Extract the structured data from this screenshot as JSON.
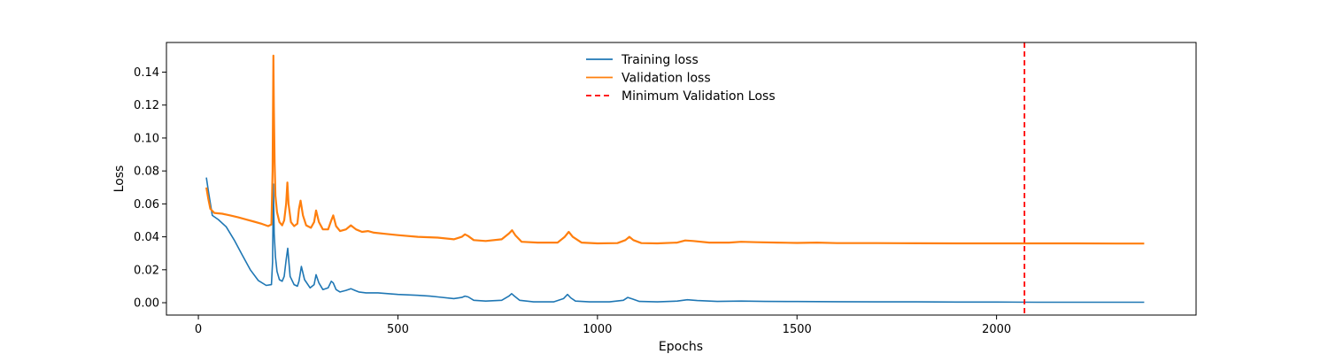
{
  "chart_data": {
    "type": "line",
    "xlabel": "Epochs",
    "ylabel": "Loss",
    "xlim": [
      -80,
      2500
    ],
    "ylim": [
      -0.0075,
      0.158
    ],
    "xticks": [
      0,
      500,
      1000,
      1500,
      2000
    ],
    "yticks": [
      0.0,
      0.02,
      0.04,
      0.06,
      0.08,
      0.1,
      0.12,
      0.14
    ],
    "ytick_labels": [
      "0.00",
      "0.02",
      "0.04",
      "0.06",
      "0.08",
      "0.10",
      "0.12",
      "0.14"
    ],
    "legend_position": "top-center",
    "grid": false,
    "series": [
      {
        "name": "Training loss",
        "color": "#1f77b4",
        "style": "solid",
        "x": [
          20,
          25,
          35,
          50,
          70,
          90,
          110,
          130,
          150,
          170,
          183,
          186,
          188,
          190,
          193,
          197,
          203,
          210,
          215,
          220,
          224,
          230,
          240,
          248,
          252,
          258,
          266,
          280,
          290,
          295,
          302,
          312,
          325,
          333,
          338,
          345,
          355,
          370,
          382,
          392,
          402,
          420,
          450,
          500,
          550,
          580,
          600,
          640,
          660,
          668,
          676,
          690,
          720,
          760,
          778,
          785,
          792,
          805,
          840,
          890,
          915,
          925,
          933,
          945,
          980,
          1030,
          1065,
          1076,
          1088,
          1105,
          1150,
          1200,
          1225,
          1250,
          1300,
          1360,
          1420,
          1500,
          1600,
          1700,
          1800,
          1900,
          2000,
          2100,
          2200,
          2300,
          2370
        ],
        "y": [
          0.076,
          0.068,
          0.053,
          0.0505,
          0.046,
          0.038,
          0.029,
          0.02,
          0.0135,
          0.0105,
          0.011,
          0.025,
          0.072,
          0.042,
          0.028,
          0.019,
          0.014,
          0.013,
          0.016,
          0.026,
          0.033,
          0.016,
          0.011,
          0.01,
          0.013,
          0.022,
          0.014,
          0.009,
          0.011,
          0.017,
          0.012,
          0.008,
          0.009,
          0.013,
          0.012,
          0.008,
          0.0065,
          0.0075,
          0.0085,
          0.0075,
          0.0065,
          0.006,
          0.006,
          0.005,
          0.0045,
          0.004,
          0.0035,
          0.0025,
          0.0032,
          0.004,
          0.0035,
          0.0015,
          0.001,
          0.0015,
          0.004,
          0.0055,
          0.004,
          0.0015,
          0.0005,
          0.0005,
          0.0025,
          0.005,
          0.003,
          0.001,
          0.0005,
          0.0005,
          0.0015,
          0.0032,
          0.0022,
          0.0008,
          0.0005,
          0.001,
          0.0018,
          0.0013,
          0.0008,
          0.001,
          0.0008,
          0.0007,
          0.0006,
          0.0005,
          0.0005,
          0.0004,
          0.0004,
          0.0003,
          0.0003,
          0.0003,
          0.0003
        ]
      },
      {
        "name": "Validation loss",
        "color": "#ff7f0e",
        "style": "solid",
        "x": [
          20,
          25,
          30,
          40,
          60,
          80,
          100,
          120,
          140,
          160,
          175,
          183,
          186,
          188,
          189,
          191,
          193,
          197,
          203,
          210,
          215,
          220,
          223,
          226,
          232,
          240,
          248,
          252,
          256,
          262,
          270,
          282,
          290,
          295,
          302,
          312,
          325,
          333,
          338,
          345,
          355,
          370,
          382,
          395,
          410,
          425,
          440,
          470,
          500,
          550,
          600,
          640,
          660,
          668,
          676,
          690,
          720,
          760,
          778,
          786,
          794,
          810,
          850,
          900,
          918,
          928,
          938,
          960,
          1000,
          1050,
          1070,
          1080,
          1090,
          1110,
          1150,
          1200,
          1220,
          1240,
          1280,
          1330,
          1360,
          1400,
          1450,
          1500,
          1550,
          1600,
          1700,
          1800,
          1900,
          2000,
          2100,
          2200,
          2300,
          2370
        ],
        "y": [
          0.07,
          0.063,
          0.057,
          0.0545,
          0.054,
          0.053,
          0.0518,
          0.0505,
          0.0492,
          0.0478,
          0.0465,
          0.0475,
          0.08,
          0.15,
          0.12,
          0.085,
          0.065,
          0.055,
          0.049,
          0.047,
          0.05,
          0.06,
          0.073,
          0.06,
          0.049,
          0.0465,
          0.048,
          0.057,
          0.062,
          0.053,
          0.047,
          0.0455,
          0.049,
          0.056,
          0.049,
          0.0445,
          0.0445,
          0.05,
          0.053,
          0.0465,
          0.0435,
          0.0445,
          0.047,
          0.0445,
          0.043,
          0.0435,
          0.0425,
          0.0418,
          0.041,
          0.04,
          0.0395,
          0.0385,
          0.04,
          0.0415,
          0.0405,
          0.038,
          0.0375,
          0.0385,
          0.042,
          0.044,
          0.041,
          0.037,
          0.0365,
          0.0365,
          0.04,
          0.043,
          0.04,
          0.0365,
          0.036,
          0.0362,
          0.038,
          0.04,
          0.038,
          0.0362,
          0.036,
          0.0365,
          0.0378,
          0.0375,
          0.0365,
          0.0365,
          0.037,
          0.0367,
          0.0365,
          0.0363,
          0.0365,
          0.0362,
          0.0362,
          0.0361,
          0.036,
          0.036,
          0.036,
          0.036,
          0.0359,
          0.0359
        ]
      }
    ],
    "vlines": [
      {
        "name": "Minimum Validation Loss",
        "x": 2070,
        "color": "#ff0000",
        "style": "dashed"
      }
    ]
  }
}
